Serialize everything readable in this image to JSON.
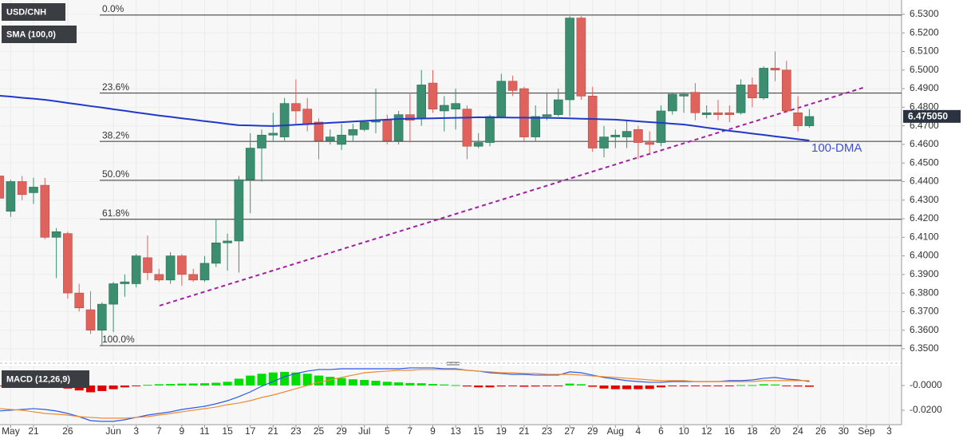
{
  "chart_data": [
    {
      "type": "candlestick",
      "symbol": "USD/CNH",
      "indicator": "SMA (100,0)",
      "categories": [
        null,
        "May",
        null,
        "21",
        null,
        null,
        "26",
        null,
        null,
        null,
        "Jun",
        null,
        "3",
        null,
        "7",
        null,
        "9",
        null,
        "11",
        null,
        "15",
        null,
        "17",
        null,
        "21",
        null,
        "23",
        null,
        "25",
        null,
        "29",
        null,
        "Jul",
        null,
        "5",
        null,
        "7",
        null,
        "9",
        null,
        "13",
        null,
        "15",
        null,
        "19",
        null,
        "21",
        null,
        "23",
        null,
        "27",
        null,
        "29",
        null,
        "Aug",
        null,
        "4",
        null,
        "6",
        null,
        "10",
        null,
        "12",
        null,
        "16",
        null,
        "18",
        null,
        "20",
        null,
        "24",
        null,
        "26",
        null,
        "30",
        null,
        "Sep",
        null,
        "3"
      ],
      "open": [
        6.443,
        6.424,
        6.44,
        6.434,
        6.438,
        6.41,
        6.412,
        6.38,
        6.371,
        6.36,
        6.374,
        6.385,
        6.385,
        6.399,
        6.39,
        6.387,
        6.4,
        6.39,
        6.387,
        6.396,
        6.407,
        6.408,
        6.441,
        6.458,
        6.465,
        6.464,
        6.482,
        6.479,
        6.472,
        6.462,
        6.46,
        6.465,
        6.468,
        6.472,
        6.473,
        6.462,
        6.476,
        6.474,
        6.493,
        6.478,
        6.479,
        6.479,
        6.459,
        6.461,
        6.475,
        6.494,
        6.49,
        6.464,
        6.475,
        6.476,
        6.484,
        6.528,
        6.486,
        6.458,
        6.464,
        6.464,
        6.468,
        6.461,
        6.461,
        6.478,
        6.486,
        6.488,
        6.476,
        6.477,
        6.477,
        6.477,
        6.492,
        6.485,
        6.501,
        6.5,
        6.477,
        6.47,
        null,
        null,
        null,
        null,
        null,
        null,
        null
      ],
      "high": [
        6.444,
        6.441,
        6.443,
        6.442,
        6.442,
        6.415,
        6.413,
        6.385,
        6.381,
        6.375,
        6.386,
        6.39,
        6.401,
        6.411,
        6.393,
        6.402,
        6.401,
        6.393,
        6.4,
        6.42,
        6.412,
        6.443,
        6.466,
        6.468,
        6.477,
        6.485,
        6.495,
        6.485,
        6.474,
        6.468,
        6.471,
        6.471,
        6.473,
        6.49,
        6.476,
        6.478,
        6.488,
        6.5,
        6.5,
        6.486,
        6.49,
        6.481,
        6.466,
        6.476,
        6.498,
        6.497,
        6.491,
        6.481,
        6.488,
        6.49,
        6.529,
        6.529,
        6.491,
        6.47,
        6.468,
        6.473,
        6.47,
        6.467,
        6.481,
        6.488,
        6.488,
        6.493,
        6.481,
        6.484,
        6.481,
        6.495,
        6.496,
        6.502,
        6.51,
        6.505,
        6.486,
        6.479,
        null,
        null,
        null,
        null,
        null,
        null,
        null
      ],
      "low": [
        6.428,
        6.421,
        6.43,
        6.428,
        6.409,
        6.388,
        6.377,
        6.37,
        6.358,
        6.352,
        6.359,
        6.378,
        6.383,
        6.387,
        6.386,
        6.385,
        6.384,
        6.386,
        6.386,
        6.394,
        6.392,
        6.391,
        6.423,
        6.44,
        6.462,
        6.462,
        6.471,
        6.467,
        6.452,
        6.46,
        6.457,
        6.462,
        6.467,
        6.466,
        6.46,
        6.46,
        6.461,
        6.47,
        6.477,
        6.467,
        6.468,
        6.452,
        6.458,
        6.459,
        6.474,
        6.486,
        6.462,
        6.462,
        6.473,
        6.475,
        6.475,
        6.484,
        6.456,
        6.453,
        6.458,
        6.458,
        6.452,
        6.455,
        6.459,
        6.476,
        6.477,
        6.473,
        6.474,
        6.473,
        6.472,
        6.476,
        6.48,
        6.484,
        6.494,
        6.477,
        6.467,
        6.469,
        null,
        null,
        null,
        null,
        null,
        null,
        null
      ],
      "close": [
        6.431,
        6.44,
        6.433,
        6.437,
        6.41,
        6.413,
        6.38,
        6.372,
        6.36,
        6.374,
        6.385,
        6.386,
        6.4,
        6.391,
        6.387,
        6.4,
        6.39,
        6.387,
        6.396,
        6.407,
        6.408,
        6.441,
        6.458,
        6.465,
        6.466,
        6.482,
        6.478,
        6.471,
        6.462,
        6.464,
        6.465,
        6.468,
        6.472,
        6.473,
        6.462,
        6.476,
        6.473,
        6.492,
        6.479,
        6.481,
        6.482,
        6.459,
        6.461,
        6.475,
        6.494,
        6.489,
        6.464,
        6.475,
        6.476,
        6.484,
        6.528,
        6.486,
        6.458,
        6.464,
        6.465,
        6.467,
        6.461,
        6.46,
        6.478,
        6.487,
        6.487,
        6.477,
        6.477,
        6.476,
        6.476,
        6.492,
        6.485,
        6.501,
        6.5,
        6.478,
        6.47,
        6.475,
        null,
        null,
        null,
        null,
        null,
        null,
        null
      ],
      "up_color": "#3b8f70",
      "down_color": "#e0625c",
      "sma": {
        "name": "100-DMA",
        "color": "#2238c8",
        "values": [
          6.4862,
          6.4857,
          6.4851,
          6.4846,
          6.484,
          6.4832,
          6.4823,
          6.4815,
          6.4806,
          6.4798,
          6.4789,
          6.4781,
          6.4772,
          6.4764,
          6.4755,
          6.4748,
          6.474,
          6.4733,
          6.4725,
          6.4718,
          6.471,
          6.4703,
          6.4702,
          6.47,
          6.4699,
          6.4702,
          6.4706,
          6.4709,
          6.4712,
          6.4716,
          6.4719,
          6.4723,
          6.4726,
          6.473,
          6.4733,
          6.4737,
          6.4738,
          6.4739,
          6.474,
          6.4742,
          6.4743,
          6.4744,
          6.4746,
          6.4745,
          6.4745,
          6.4744,
          6.4744,
          6.4743,
          6.4743,
          6.4742,
          6.474,
          6.4738,
          6.4737,
          6.4735,
          6.4733,
          6.4729,
          6.4724,
          6.472,
          6.4716,
          6.4711,
          6.4707,
          6.4699,
          6.469,
          6.4682,
          6.4673,
          6.4666,
          6.4658,
          6.4651,
          6.4643,
          6.4636,
          6.4628,
          6.4621,
          null,
          null,
          null,
          null,
          null,
          null,
          null
        ]
      },
      "fib_levels": [
        {
          "label": "0.0%",
          "value": 6.5296
        },
        {
          "label": "23.6%",
          "value": 6.4876
        },
        {
          "label": "38.2%",
          "value": 6.4616
        },
        {
          "label": "50.0%",
          "value": 6.4407
        },
        {
          "label": "61.8%",
          "value": 6.4197
        },
        {
          "label": "100.0%",
          "value": 6.3517
        }
      ],
      "trendline": {
        "start": 6.3732,
        "end": 6.4909,
        "color": "#a020a0"
      },
      "last_price": {
        "value": 6.47505,
        "label": "6.475050"
      },
      "ylim": [
        6.3444,
        6.5377
      ],
      "yticks": [
        {
          "value": 6.53,
          "label": "6.5300"
        },
        {
          "value": 6.52,
          "label": "6.5200"
        },
        {
          "value": 6.51,
          "label": "6.5100"
        },
        {
          "value": 6.5,
          "label": "6.5000"
        },
        {
          "value": 6.49,
          "label": "6.4900"
        },
        {
          "value": 6.48,
          "label": "6.4800"
        },
        {
          "value": 6.47,
          "label": "6.4700"
        },
        {
          "value": 6.46,
          "label": "6.4600"
        },
        {
          "value": 6.45,
          "label": "6.4500"
        },
        {
          "value": 6.44,
          "label": "6.4400"
        },
        {
          "value": 6.43,
          "label": "6.4300"
        },
        {
          "value": 6.42,
          "label": "6.4200"
        },
        {
          "value": 6.41,
          "label": "6.4100"
        },
        {
          "value": 6.4,
          "label": "6.4000"
        },
        {
          "value": 6.39,
          "label": "6.3900"
        },
        {
          "value": 6.38,
          "label": "6.3800"
        },
        {
          "value": 6.37,
          "label": "6.3700"
        },
        {
          "value": 6.36,
          "label": "6.3600"
        },
        {
          "value": 6.35,
          "label": "6.3500"
        }
      ],
      "grid": true
    },
    {
      "type": "macd",
      "title": "MACD (12,26,9)",
      "histogram": [
        -0.0005,
        -0.0005,
        -0.0005,
        -0.0005,
        -0.0008,
        -0.001,
        -0.0025,
        -0.004,
        -0.0055,
        -0.0045,
        -0.003,
        -0.0015,
        -0.0003,
        0.0005,
        0.001,
        0.0012,
        0.0015,
        0.0016,
        0.0018,
        0.0022,
        0.003,
        0.0055,
        0.008,
        0.0095,
        0.0105,
        0.011,
        0.0105,
        0.0095,
        0.008,
        0.007,
        0.006,
        0.005,
        0.0045,
        0.0038,
        0.003,
        0.0025,
        0.002,
        0.0018,
        0.0012,
        0.0008,
        0.0003,
        -0.0008,
        -0.0015,
        -0.0015,
        -0.0008,
        -0.0005,
        -0.001,
        -0.0008,
        -0.0005,
        -0.0002,
        0.0015,
        0.001,
        -0.001,
        -0.0025,
        -0.003,
        -0.003,
        -0.003,
        -0.0028,
        -0.0015,
        -0.0005,
        -0.0003,
        -0.0005,
        -0.0005,
        -0.0006,
        -0.0006,
        0.0003,
        0.0003,
        0.001,
        0.0008,
        -0.0003,
        -0.0008,
        -0.001,
        null,
        null,
        null,
        null,
        null,
        null,
        null
      ],
      "up_color": "#00dd00",
      "down_color": "#e00000",
      "series": [
        {
          "color": "#2a5ae6",
          "values": [
            -0.0206,
            -0.02,
            -0.0194,
            -0.0187,
            -0.0194,
            -0.0206,
            -0.0226,
            -0.0252,
            -0.0284,
            -0.029,
            -0.029,
            -0.0277,
            -0.0258,
            -0.0239,
            -0.0226,
            -0.0213,
            -0.0194,
            -0.0181,
            -0.0168,
            -0.0148,
            -0.0123,
            -0.009,
            -0.0052,
            -0.0006,
            0.0032,
            0.0071,
            0.0097,
            0.0116,
            0.0129,
            0.0129,
            0.0135,
            0.0135,
            0.0135,
            0.0135,
            0.0135,
            0.0135,
            0.0142,
            0.0142,
            0.0142,
            0.0135,
            0.0135,
            0.0123,
            0.0116,
            0.0103,
            0.0097,
            0.009,
            0.009,
            0.0084,
            0.0084,
            0.0084,
            0.011,
            0.0103,
            0.0084,
            0.0065,
            0.0052,
            0.0039,
            0.0032,
            0.0026,
            0.0026,
            0.0032,
            0.0032,
            0.0032,
            0.0032,
            0.0032,
            0.0039,
            0.0039,
            0.0045,
            0.0058,
            0.0065,
            0.0052,
            0.0045,
            0.0032,
            null,
            null,
            null,
            null,
            null,
            null,
            null
          ]
        },
        {
          "color": "#f08a2c",
          "values": [
            -0.0187,
            -0.0194,
            -0.02,
            -0.0213,
            -0.0226,
            -0.0232,
            -0.0239,
            -0.0252,
            -0.0258,
            -0.0264,
            -0.0264,
            -0.0264,
            -0.0258,
            -0.0252,
            -0.0239,
            -0.0226,
            -0.0213,
            -0.02,
            -0.0187,
            -0.0174,
            -0.0155,
            -0.0142,
            -0.0123,
            -0.0097,
            -0.0077,
            -0.0052,
            -0.0026,
            0,
            0.0026,
            0.0045,
            0.0065,
            0.0084,
            0.0103,
            0.011,
            0.0116,
            0.0123,
            0.0123,
            0.0129,
            0.0129,
            0.0129,
            0.0129,
            0.0123,
            0.0116,
            0.011,
            0.0103,
            0.0103,
            0.0097,
            0.0097,
            0.009,
            0.009,
            0.009,
            0.0084,
            0.0077,
            0.0071,
            0.0065,
            0.0058,
            0.0052,
            0.0045,
            0.0039,
            0.0039,
            0.0039,
            0.0032,
            0.0032,
            0.0032,
            0.0032,
            0.0032,
            0.0032,
            0.0039,
            0.0039,
            0.0039,
            0.0039,
            0.0039,
            null,
            null,
            null,
            null,
            null,
            null,
            null
          ]
        }
      ],
      "ylim": [
        -0.031,
        0.0148
      ],
      "yticks": [
        {
          "value": 0,
          "label": "-0.0000"
        },
        {
          "value": -0.02,
          "label": "-0.0200"
        }
      ]
    }
  ]
}
